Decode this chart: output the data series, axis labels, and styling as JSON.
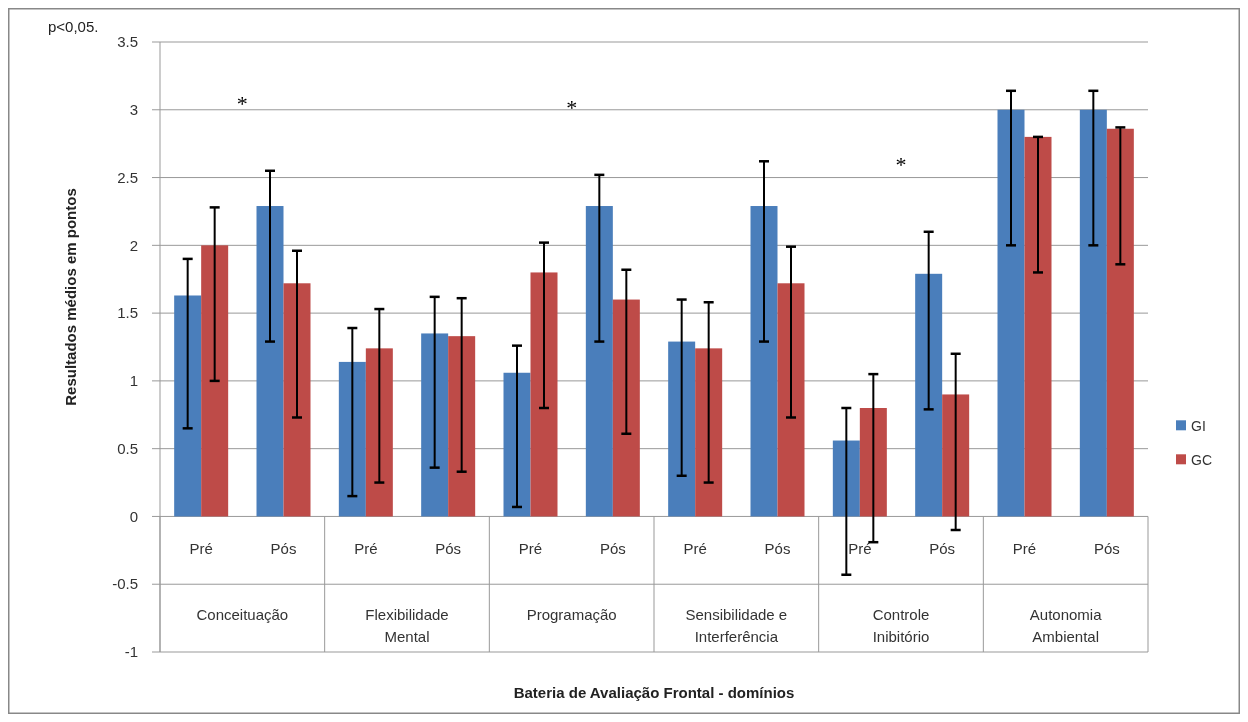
{
  "chart_data": {
    "type": "bar",
    "xlabel": "Bateria de Avaliação Frontal - domínios",
    "ylabel": "Resultados médios em pontos",
    "categories": [
      "Pré",
      "Pós",
      "Pré",
      "Pós",
      "Pré",
      "Pós",
      "Pré",
      "Pós",
      "Pré",
      "Pós",
      "Pré",
      "Pós"
    ],
    "series": [
      {
        "name": "GI",
        "color": "#4a7ebb",
        "values": [
          1.63,
          2.29,
          1.14,
          1.35,
          1.06,
          2.29,
          1.29,
          2.29,
          0.56,
          1.79,
          3.0,
          3.0
        ],
        "errors": [
          [
            0.65,
            1.9
          ],
          [
            1.29,
            2.55
          ],
          [
            0.15,
            1.39
          ],
          [
            0.36,
            1.62
          ],
          [
            0.07,
            1.26
          ],
          [
            1.29,
            2.52
          ],
          [
            0.3,
            1.6
          ],
          [
            1.29,
            2.62
          ],
          [
            -0.43,
            0.8
          ],
          [
            0.79,
            2.1
          ],
          [
            2.0,
            3.14
          ],
          [
            2.0,
            3.14
          ]
        ]
      },
      {
        "name": "GC",
        "color": "#be4b48",
        "values": [
          2.0,
          1.72,
          1.24,
          1.33,
          1.8,
          1.6,
          1.24,
          1.72,
          0.8,
          0.9,
          2.8,
          2.86
        ],
        "errors": [
          [
            1.0,
            2.28
          ],
          [
            0.73,
            1.96
          ],
          [
            0.25,
            1.53
          ],
          [
            0.33,
            1.61
          ],
          [
            0.8,
            2.02
          ],
          [
            0.61,
            1.82
          ],
          [
            0.25,
            1.58
          ],
          [
            0.73,
            1.99
          ],
          [
            -0.19,
            1.05
          ],
          [
            -0.1,
            1.2
          ],
          [
            1.8,
            2.8
          ],
          [
            1.86,
            2.87
          ]
        ]
      }
    ],
    "ylim": [
      -1,
      3.5
    ],
    "yticks": [
      -1,
      -0.5,
      0,
      0.5,
      1,
      1.5,
      2,
      2.5,
      3,
      3.5
    ],
    "grid": "y",
    "legend": "right",
    "annotations": [
      "p<0,05.",
      "Conceituação",
      "*",
      "Flexibilidade Mental",
      "Programação",
      "*",
      "Sensibilidade e Interferência",
      "Controle Inibitório",
      "*",
      "Autonomia Ambiental"
    ]
  }
}
